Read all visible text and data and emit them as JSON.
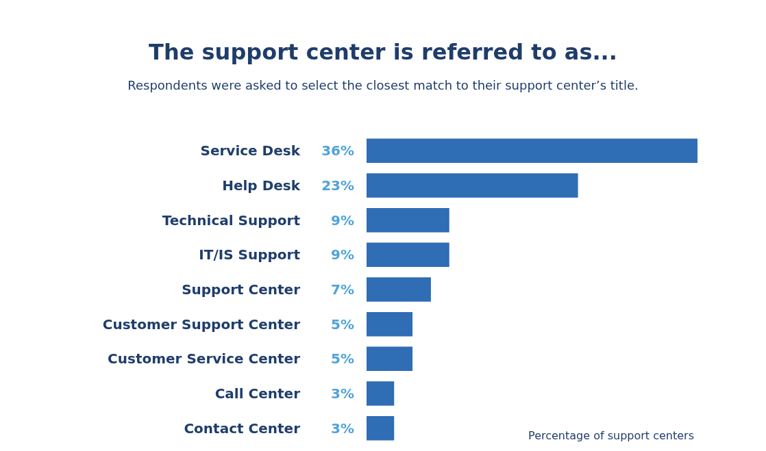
{
  "chart_data": {
    "type": "bar",
    "orientation": "horizontal",
    "title": "The support center is referred to as...",
    "subtitle": "Respondents were asked to select the closest match to their support center’s title.",
    "xlabel": "Percentage of support centers",
    "categories": [
      "Service Desk",
      "Help Desk",
      "Technical Support",
      "IT/IS Support",
      "Support Center",
      "Customer Support Center",
      "Customer Service Center",
      "Call Center",
      "Contact Center"
    ],
    "values": [
      36,
      23,
      9,
      9,
      7,
      5,
      5,
      3,
      3
    ],
    "value_labels": [
      "36%",
      "23%",
      "9%",
      "9%",
      "7%",
      "5%",
      "5%",
      "3%",
      "3%"
    ],
    "color": "#2f6db5"
  }
}
